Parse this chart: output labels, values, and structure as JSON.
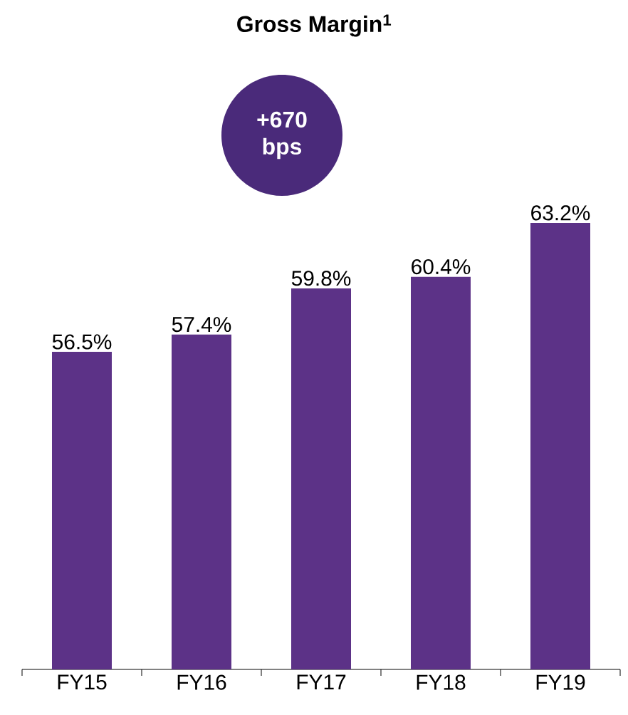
{
  "chart_data": {
    "type": "bar",
    "title": "Gross Margin$^{1}$",
    "categories": [
      "FY15",
      "FY16",
      "FY17",
      "FY18",
      "FY19"
    ],
    "values": [
      56.5,
      57.4,
      59.8,
      60.4,
      63.2
    ],
    "value_labels": [
      "56.5%",
      "57.4%",
      "59.8%",
      "60.4%",
      "63.2%"
    ],
    "color": "#5c3287",
    "ylim": [
      40,
      63.2
    ],
    "tick_labels": "x",
    "annotations": [
      "+670 bps"
    ]
  }
}
